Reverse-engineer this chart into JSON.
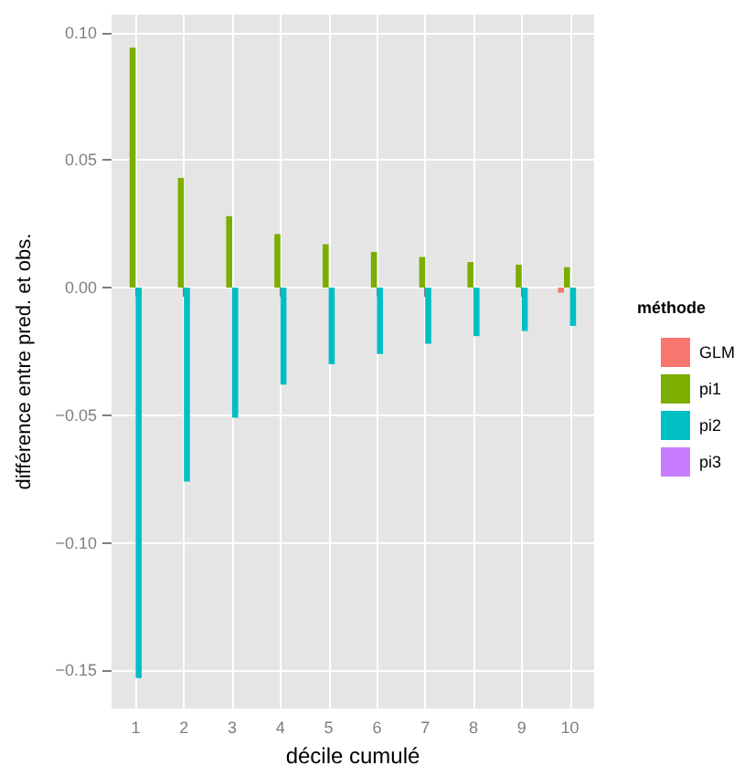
{
  "chart_data": {
    "type": "bar",
    "xlabel": "décile cumulé",
    "ylabel": "différence entre pred. et obs.",
    "legend_title": "méthode",
    "categories": [
      "1",
      "2",
      "3",
      "4",
      "5",
      "6",
      "7",
      "8",
      "9",
      "10"
    ],
    "series": [
      {
        "name": "GLM",
        "color": "#f8766d",
        "values": [
          0,
          0,
          0,
          0,
          0,
          0,
          0,
          0,
          0,
          -0.002
        ]
      },
      {
        "name": "pi1",
        "color": "#7cae00",
        "values": [
          0.094,
          0.043,
          0.028,
          0.021,
          0.017,
          0.014,
          0.012,
          0.01,
          0.009,
          0.008
        ]
      },
      {
        "name": "pi2",
        "color": "#00bfc4",
        "values": [
          -0.153,
          -0.076,
          -0.051,
          -0.038,
          -0.03,
          -0.026,
          -0.022,
          -0.019,
          -0.017,
          -0.015
        ]
      },
      {
        "name": "pi3",
        "color": "#c77cff",
        "values": [
          0,
          0,
          0,
          0,
          0,
          0,
          0,
          0,
          0,
          0
        ]
      }
    ],
    "ylim": [
      -0.165,
      0.107
    ],
    "yticks": [
      {
        "value": -0.15,
        "label": "−0.15"
      },
      {
        "value": -0.1,
        "label": "−0.10"
      },
      {
        "value": -0.05,
        "label": "−0.05"
      },
      {
        "value": 0,
        "label": "0.00"
      },
      {
        "value": 0.05,
        "label": "0.05"
      },
      {
        "value": 0.1,
        "label": "0.10"
      }
    ],
    "grid": true,
    "legend": "right"
  }
}
